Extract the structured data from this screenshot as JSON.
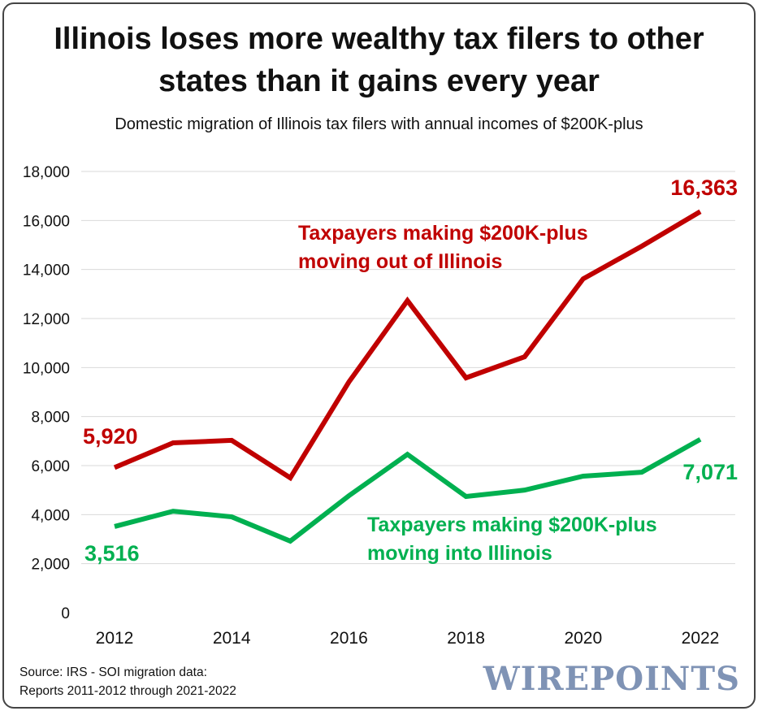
{
  "chart_data": {
    "type": "line",
    "title": "Illinois loses more wealthy tax filers to other states than it gains every year",
    "subtitle": "Domestic migration of Illinois tax filers with annual incomes of $200K-plus",
    "x": [
      2012,
      2013,
      2014,
      2015,
      2016,
      2017,
      2018,
      2019,
      2020,
      2021,
      2022
    ],
    "x_ticks": [
      "2012",
      "2014",
      "2016",
      "2018",
      "2020",
      "2022"
    ],
    "y_ticks": [
      "0",
      "2,000",
      "4,000",
      "6,000",
      "8,000",
      "10,000",
      "12,000",
      "14,000",
      "16,000",
      "18,000"
    ],
    "ylim": [
      0,
      18000
    ],
    "grid": true,
    "series": [
      {
        "name": "Taxpayers making $200K-plus moving out of Illinois",
        "label_lines": [
          "Taxpayers making $200K-plus",
          "moving out of Illinois"
        ],
        "color": "#c00000",
        "values": [
          5920,
          6930,
          7030,
          5500,
          9410,
          12730,
          9580,
          10440,
          13620,
          14950,
          16363
        ],
        "start_label": "5,920",
        "end_label": "16,363"
      },
      {
        "name": "Taxpayers making $200K-plus moving into Illinois",
        "label_lines": [
          "Taxpayers making $200K-plus",
          "moving into Illinois"
        ],
        "color": "#00b050",
        "values": [
          3516,
          4140,
          3910,
          2920,
          4770,
          6460,
          4740,
          5000,
          5570,
          5730,
          7071
        ],
        "start_label": "3,516",
        "end_label": "7,071"
      }
    ]
  },
  "source_lines": [
    "Source: IRS - SOI migration data:",
    "Reports 2011-2012 through 2021-2022"
  ],
  "logo_text": "WIREPOINTS"
}
